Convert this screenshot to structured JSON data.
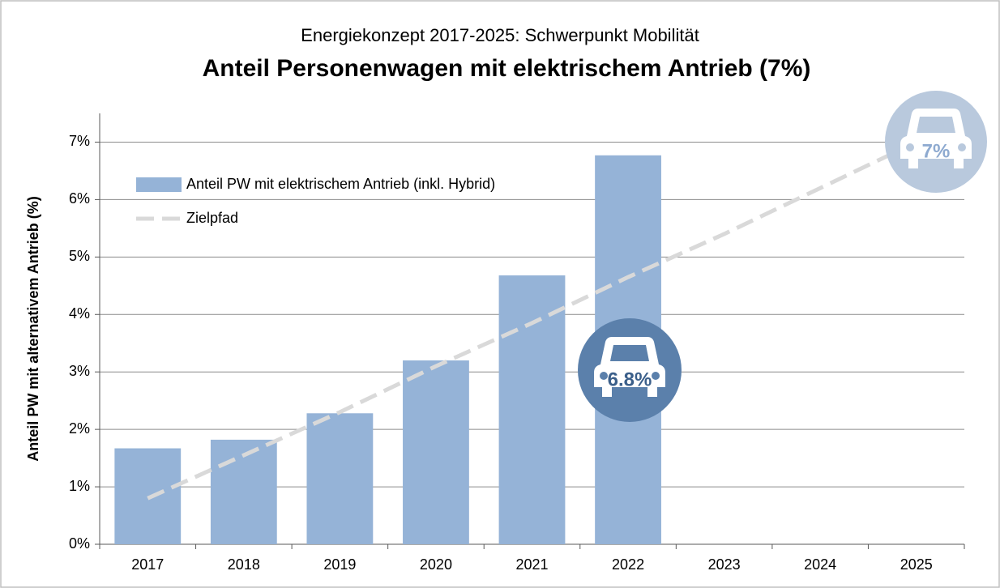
{
  "chart_data": {
    "type": "bar",
    "subtitle": "Energiekonzept 2017-2025: Schwerpunkt Mobilität",
    "title": "Anteil Personenwagen mit elektrischem Antrieb (7%)",
    "y_label": "Anteil PW mit alternativem Antrieb (%)",
    "categories": [
      "2017",
      "2018",
      "2019",
      "2020",
      "2021",
      "2022",
      "2023",
      "2024",
      "2025"
    ],
    "series": [
      {
        "name": "Anteil PW mit elektrischem Antrieb (inkl. Hybrid)",
        "type": "bar",
        "color": "#95b3d7",
        "values": [
          1.67,
          1.82,
          2.28,
          3.2,
          4.68,
          6.77,
          null,
          null,
          null
        ]
      },
      {
        "name": "Zielpfad",
        "type": "line",
        "color": "#d9d9d9",
        "dashed": true,
        "values": [
          0.8,
          1.55,
          2.3,
          3.1,
          3.85,
          4.65,
          5.4,
          6.2,
          7.0
        ]
      }
    ],
    "annotations": [
      "6.8%",
      "7%"
    ],
    "ylim": [
      0,
      7.5
    ],
    "yticks": [
      {
        "value": 0,
        "label": "0%"
      },
      {
        "value": 1,
        "label": "1%"
      },
      {
        "value": 2,
        "label": "2%"
      },
      {
        "value": 3,
        "label": "3%"
      },
      {
        "value": 4,
        "label": "4%"
      },
      {
        "value": 5,
        "label": "5%"
      },
      {
        "value": 6,
        "label": "6%"
      },
      {
        "value": 7,
        "label": "7%"
      }
    ],
    "grid": true,
    "legend": "top-left"
  }
}
